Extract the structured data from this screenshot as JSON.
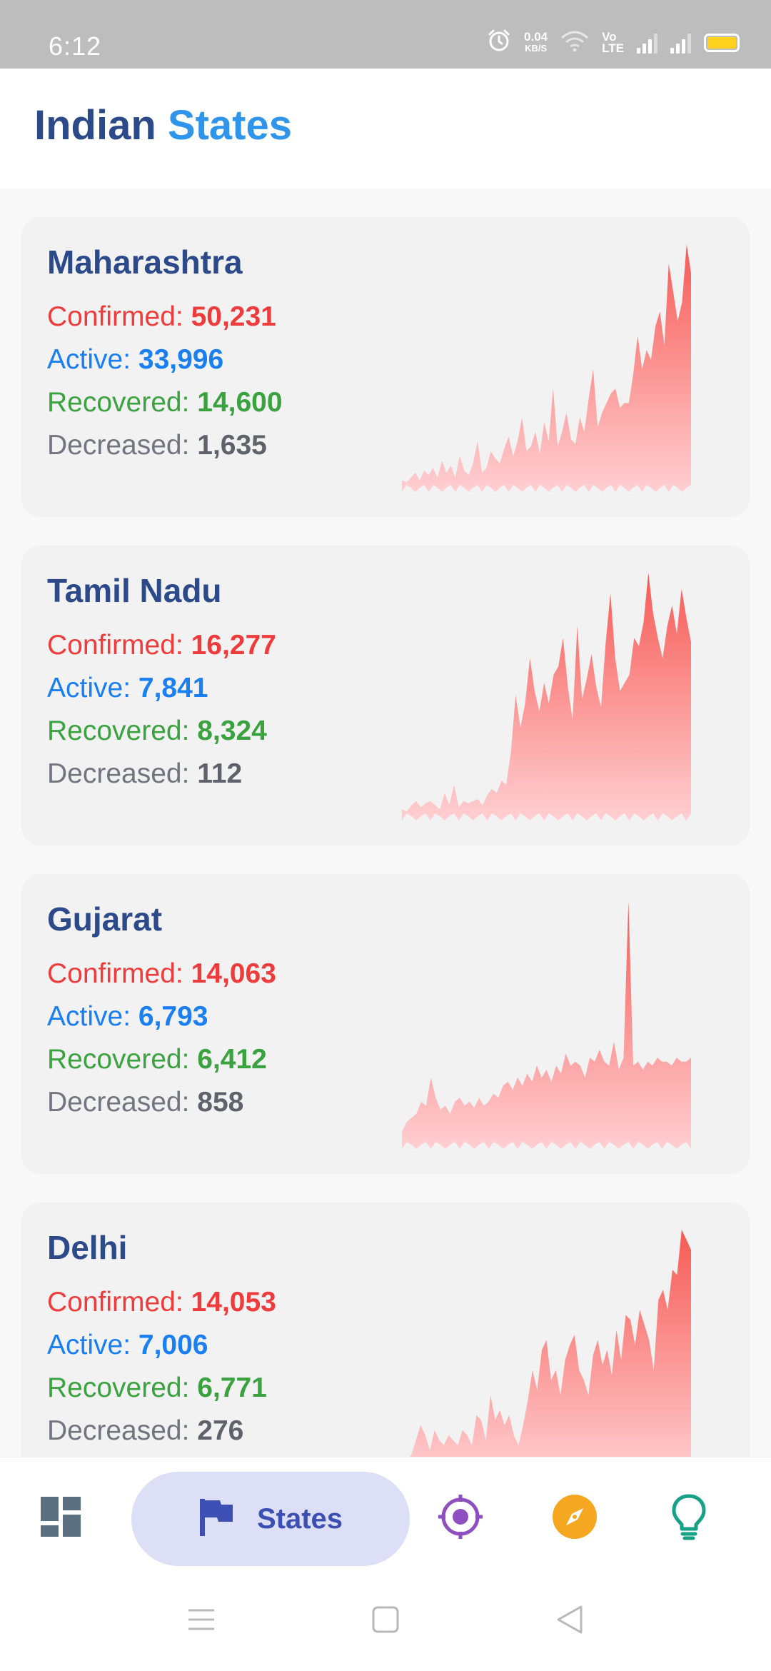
{
  "status_bar": {
    "time": "6:12",
    "net_speed_value": "0.04",
    "net_speed_unit": "KB/S",
    "volte_line1": "Vo",
    "volte_line2": "LTE",
    "battery_color": "#ffd21f"
  },
  "header": {
    "title_part1": "Indian",
    "title_part2": "States"
  },
  "labels": {
    "confirmed": "Confirmed:",
    "active": "Active:",
    "recovered": "Recovered:",
    "decreased": "Decreased:"
  },
  "states": [
    {
      "name": "Maharashtra",
      "confirmed": "50,231",
      "active": "33,996",
      "recovered": "14,600",
      "decreased": "1,635",
      "trend": [
        2,
        1,
        3,
        5,
        2,
        6,
        4,
        7,
        3,
        10,
        5,
        8,
        3,
        12,
        6,
        4,
        9,
        18,
        5,
        7,
        14,
        11,
        9,
        15,
        20,
        12,
        18,
        28,
        14,
        16,
        22,
        13,
        26,
        18,
        40,
        16,
        22,
        30,
        19,
        17,
        28,
        22,
        36,
        48,
        24,
        30,
        34,
        38,
        40,
        32,
        34,
        34,
        46,
        62,
        48,
        56,
        52,
        66,
        72,
        58,
        92,
        80,
        68,
        76,
        100,
        88
      ]
    },
    {
      "name": "Tamil Nadu",
      "confirmed": "16,277",
      "active": "7,841",
      "recovered": "8,324",
      "decreased": "112",
      "trend": [
        2,
        1,
        4,
        6,
        3,
        5,
        6,
        4,
        2,
        10,
        4,
        14,
        3,
        6,
        5,
        6,
        7,
        4,
        9,
        12,
        10,
        16,
        14,
        30,
        58,
        42,
        54,
        76,
        60,
        50,
        64,
        54,
        68,
        72,
        86,
        62,
        46,
        92,
        56,
        66,
        78,
        62,
        52,
        84,
        108,
        76,
        60,
        64,
        68,
        86,
        82,
        94,
        118,
        98,
        86,
        76,
        92,
        102,
        88,
        110,
        96,
        84
      ]
    },
    {
      "name": "Gujarat",
      "confirmed": "14,063",
      "active": "6,793",
      "recovered": "6,412",
      "decreased": "858",
      "trend": [
        5,
        10,
        12,
        14,
        20,
        18,
        32,
        22,
        16,
        18,
        14,
        20,
        22,
        18,
        20,
        17,
        22,
        18,
        20,
        24,
        22,
        28,
        30,
        26,
        32,
        28,
        34,
        30,
        38,
        32,
        36,
        30,
        38,
        34,
        44,
        38,
        40,
        38,
        32,
        42,
        40,
        46,
        40,
        38,
        50,
        36,
        42,
        120,
        38,
        40,
        36,
        40,
        38,
        42,
        40,
        40,
        38,
        42,
        40,
        40,
        42
      ]
    },
    {
      "name": "Delhi",
      "confirmed": "14,053",
      "active": "7,006",
      "recovered": "6,771",
      "decreased": "276",
      "trend": [
        2,
        4,
        6,
        12,
        18,
        14,
        8,
        16,
        12,
        10,
        14,
        12,
        10,
        16,
        14,
        10,
        22,
        20,
        12,
        30,
        20,
        24,
        18,
        22,
        14,
        10,
        18,
        28,
        40,
        32,
        48,
        52,
        36,
        40,
        30,
        44,
        50,
        54,
        40,
        36,
        30,
        46,
        52,
        42,
        48,
        38,
        56,
        44,
        62,
        60,
        50,
        64,
        58,
        52,
        40,
        68,
        72,
        64,
        80,
        78,
        96,
        92,
        88
      ]
    }
  ],
  "bottom_nav": {
    "active_label": "States",
    "dashboard_color": "#5c7080",
    "states_color": "#3d4fb3",
    "target_color": "#8e4fc1",
    "compass_color": "#f6a722",
    "bulb_color": "#16a085"
  }
}
